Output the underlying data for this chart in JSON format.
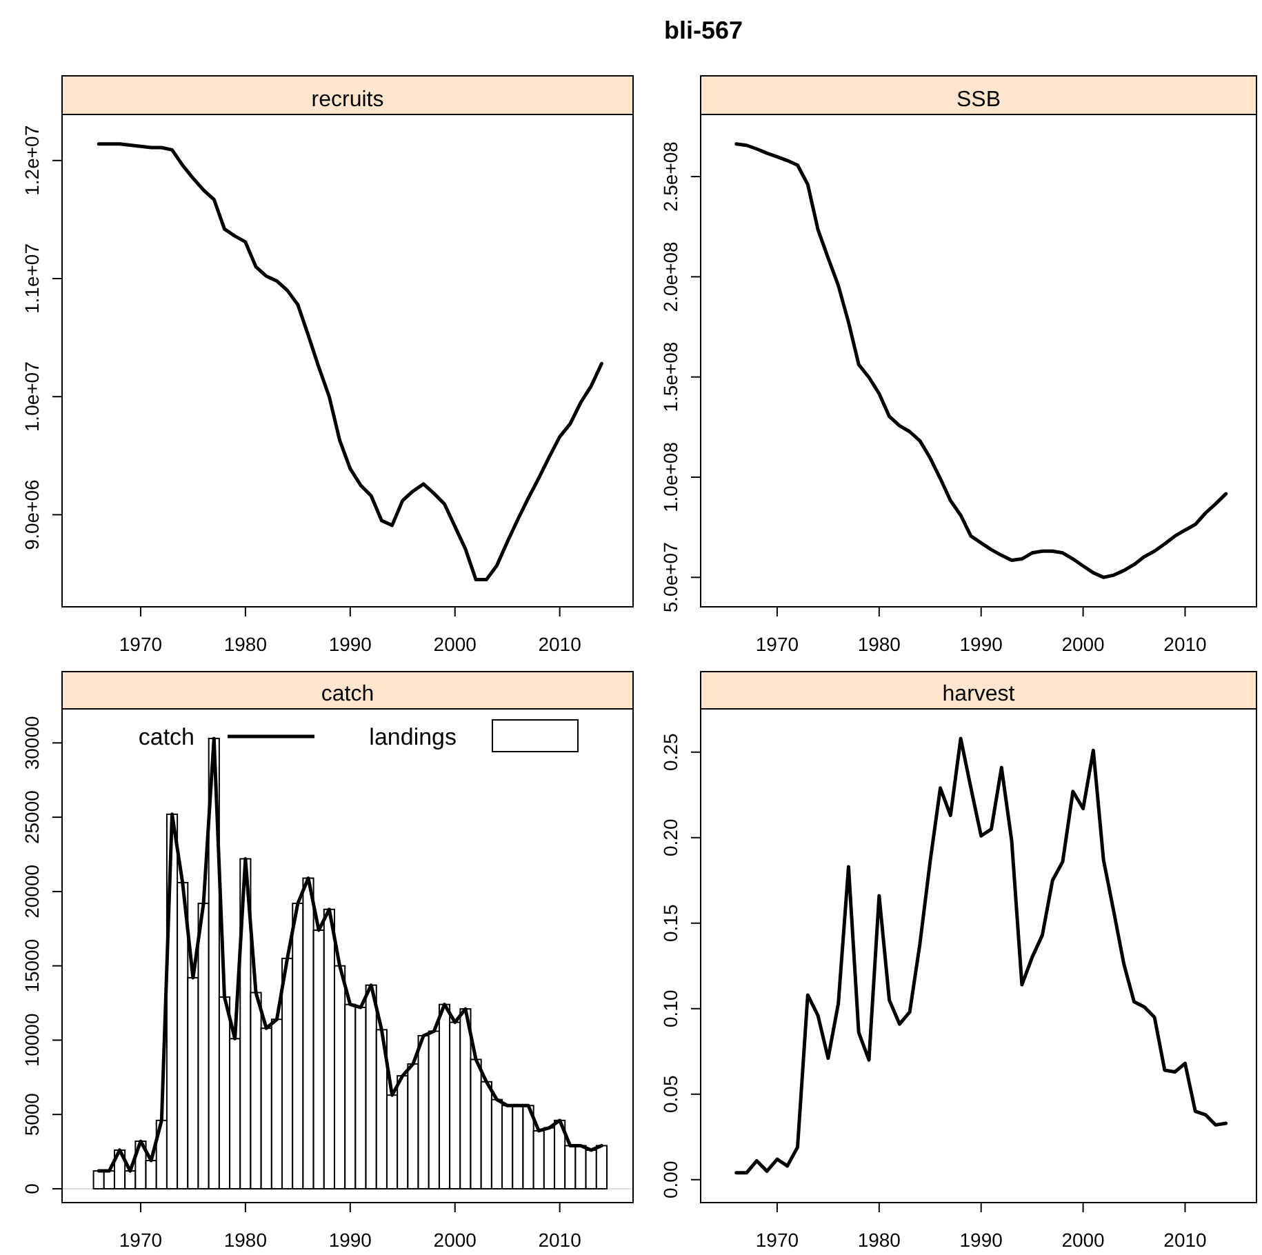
{
  "chart_data": [
    {
      "type": "line",
      "title": "recruits",
      "annotations": [
        "bli-567"
      ],
      "x": [
        1966,
        1967,
        1968,
        1969,
        1970,
        1971,
        1972,
        1973,
        1974,
        1975,
        1976,
        1977,
        1978,
        1979,
        1980,
        1981,
        1982,
        1983,
        1984,
        1985,
        1986,
        1987,
        1988,
        1989,
        1990,
        1991,
        1992,
        1993,
        1994,
        1995,
        1996,
        1997,
        1998,
        1999,
        2000,
        2001,
        2002,
        2003,
        2004,
        2005,
        2006,
        2007,
        2008,
        2009,
        2010,
        2011,
        2012,
        2013,
        2014
      ],
      "series": [
        {
          "color": "#000000",
          "values": [
            12140000,
            12140000,
            12140000,
            12130000,
            12120000,
            12110000,
            12110000,
            12090000,
            11960000,
            11850000,
            11750000,
            11670000,
            11420000,
            11360000,
            11310000,
            11100000,
            11020000,
            10980000,
            10900000,
            10780000,
            10520000,
            10250000,
            10000000,
            9630000,
            9390000,
            9250000,
            9160000,
            8950000,
            8910000,
            9120000,
            9200000,
            9260000,
            9180000,
            9090000,
            8900000,
            8710000,
            8450000,
            8450000,
            8570000,
            8770000,
            8960000,
            9140000,
            9310000,
            9490000,
            9660000,
            9770000,
            9950000,
            10090000,
            10280000
          ]
        }
      ],
      "xlim": [
        1962.5,
        2017
      ],
      "xticks": [
        1970,
        1980,
        1990,
        2000,
        2010
      ],
      "ylim": [
        8220000,
        12390000
      ],
      "yticks": [
        {
          "value": 9000000,
          "label": "9.0e+06"
        },
        {
          "value": 10000000,
          "label": "1.0e+07"
        },
        {
          "value": 11000000,
          "label": "1.1e+07"
        },
        {
          "value": 12000000,
          "label": "1.2e+07"
        }
      ],
      "grid": false,
      "line_style": "solid"
    },
    {
      "type": "line",
      "title": "SSB",
      "x": [
        1966,
        1967,
        1968,
        1969,
        1970,
        1971,
        1972,
        1973,
        1974,
        1975,
        1976,
        1977,
        1978,
        1979,
        1980,
        1981,
        1982,
        1983,
        1984,
        1985,
        1986,
        1987,
        1988,
        1989,
        1990,
        1991,
        1992,
        1993,
        1994,
        1995,
        1996,
        1997,
        1998,
        1999,
        2000,
        2001,
        2002,
        2003,
        2004,
        2005,
        2006,
        2007,
        2008,
        2009,
        2010,
        2011,
        2012,
        2013,
        2014
      ],
      "series": [
        {
          "color": "#000000",
          "values": [
            266300000,
            265600000,
            263800000,
            261700000,
            259900000,
            258000000,
            255700000,
            246100000,
            223600000,
            209400000,
            195600000,
            177300000,
            156200000,
            149800000,
            141700000,
            130300000,
            125700000,
            122700000,
            118100000,
            109600000,
            99300000,
            88300000,
            81000000,
            70600000,
            67200000,
            63800000,
            61000000,
            58500000,
            59200000,
            62200000,
            63100000,
            63100000,
            62200000,
            59200000,
            55700000,
            52300000,
            50000000,
            51100000,
            53400000,
            56400000,
            60300000,
            63100000,
            66700000,
            70600000,
            73600000,
            76400000,
            82100000,
            86700000,
            91700000
          ]
        }
      ],
      "xlim": [
        1962.5,
        2017
      ],
      "xticks": [
        1970,
        1980,
        1990,
        2000,
        2010
      ],
      "ylim": [
        35300000,
        281000000
      ],
      "yticks": [
        {
          "value": 50000000,
          "label": "5.0e+07"
        },
        {
          "value": 100000000,
          "label": "1.0e+08"
        },
        {
          "value": 150000000,
          "label": "1.5e+08"
        },
        {
          "value": 200000000,
          "label": "2.0e+08"
        },
        {
          "value": 250000000,
          "label": "2.5e+08"
        }
      ],
      "grid": false,
      "line_style": "solid"
    },
    {
      "type": "bar",
      "title": "catch",
      "x": [
        1966,
        1967,
        1968,
        1969,
        1970,
        1971,
        1972,
        1973,
        1974,
        1975,
        1976,
        1977,
        1978,
        1979,
        1980,
        1981,
        1982,
        1983,
        1984,
        1985,
        1986,
        1987,
        1988,
        1989,
        1990,
        1991,
        1992,
        1993,
        1994,
        1995,
        1996,
        1997,
        1998,
        1999,
        2000,
        2001,
        2002,
        2003,
        2004,
        2005,
        2006,
        2007,
        2008,
        2009,
        2010,
        2011,
        2012,
        2013,
        2014
      ],
      "series": [
        {
          "name": "catch",
          "type": "line",
          "color": "#000000",
          "values": [
            1200,
            1200,
            2600,
            1200,
            3200,
            1900,
            4600,
            25200,
            20600,
            14200,
            19200,
            30300,
            12900,
            10100,
            22200,
            13200,
            10800,
            11400,
            15500,
            19200,
            20900,
            17400,
            18800,
            15000,
            12400,
            12200,
            13700,
            10700,
            6300,
            7600,
            8400,
            10300,
            10600,
            12400,
            11200,
            12100,
            8700,
            7200,
            6000,
            5600,
            5600,
            5600,
            3900,
            4100,
            4600,
            2900,
            2900,
            2600,
            2900
          ]
        },
        {
          "name": "landings",
          "color": "#ffffff",
          "values": [
            1200,
            1200,
            2600,
            1200,
            3200,
            1900,
            4600,
            25200,
            20600,
            14200,
            19200,
            30300,
            12900,
            10100,
            22200,
            13200,
            10800,
            11400,
            15500,
            19200,
            20900,
            17400,
            18800,
            15000,
            12400,
            12200,
            13700,
            10700,
            6300,
            7600,
            8400,
            10300,
            10600,
            12400,
            11200,
            12100,
            8700,
            7200,
            6000,
            5600,
            5600,
            5600,
            3900,
            4100,
            4600,
            2900,
            2900,
            2600,
            2900
          ]
        }
      ],
      "xlim": [
        1962.5,
        2017
      ],
      "xticks": [
        1970,
        1980,
        1990,
        2000,
        2010
      ],
      "ylim": [
        -930,
        32290
      ],
      "yticks": [
        0,
        5000,
        10000,
        15000,
        20000,
        25000,
        30000
      ],
      "ref_lines": [
        {
          "axis": "y",
          "value": 0,
          "color": "#dddddd"
        }
      ],
      "legend": "top",
      "grid": false,
      "line_style": "solid"
    },
    {
      "type": "line",
      "title": "harvest",
      "x": [
        1966,
        1967,
        1968,
        1969,
        1970,
        1971,
        1972,
        1973,
        1974,
        1975,
        1976,
        1977,
        1978,
        1979,
        1980,
        1981,
        1982,
        1983,
        1984,
        1985,
        1986,
        1987,
        1988,
        1989,
        1990,
        1991,
        1992,
        1993,
        1994,
        1995,
        1996,
        1997,
        1998,
        1999,
        2000,
        2001,
        2002,
        2003,
        2004,
        2005,
        2006,
        2007,
        2008,
        2009,
        2010,
        2011,
        2012,
        2013,
        2014
      ],
      "series": [
        {
          "color": "#000000",
          "values": [
            0.004,
            0.004,
            0.011,
            0.005,
            0.012,
            0.008,
            0.019,
            0.108,
            0.096,
            0.071,
            0.103,
            0.183,
            0.086,
            0.07,
            0.166,
            0.105,
            0.091,
            0.098,
            0.138,
            0.186,
            0.229,
            0.213,
            0.258,
            0.229,
            0.201,
            0.205,
            0.241,
            0.198,
            0.114,
            0.13,
            0.143,
            0.175,
            0.186,
            0.227,
            0.217,
            0.251,
            0.187,
            0.157,
            0.126,
            0.104,
            0.101,
            0.095,
            0.064,
            0.063,
            0.068,
            0.04,
            0.038,
            0.032,
            0.033
          ]
        }
      ],
      "xlim": [
        1962.5,
        2017
      ],
      "xticks": [
        1970,
        1980,
        1990,
        2000,
        2010
      ],
      "ylim": [
        -0.0134,
        0.2753
      ],
      "yticks": [
        {
          "value": 0,
          "label": "0.00"
        },
        {
          "value": 0.05,
          "label": "0.05"
        },
        {
          "value": 0.1,
          "label": "0.10"
        },
        {
          "value": 0.15,
          "label": "0.15"
        },
        {
          "value": 0.2,
          "label": "0.20"
        },
        {
          "value": 0.25,
          "label": "0.25"
        }
      ],
      "grid": false,
      "line_style": "solid"
    }
  ]
}
